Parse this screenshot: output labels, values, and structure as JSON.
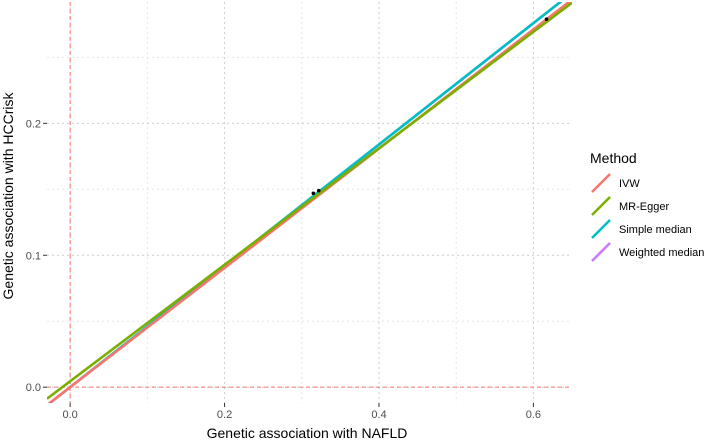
{
  "chart_data": {
    "type": "scatter",
    "xlabel": "Genetic association with NAFLD",
    "ylabel": "Genetic association with HCCrisk",
    "xlim": [
      -0.03,
      0.65
    ],
    "ylim": [
      -0.012,
      0.292
    ],
    "x_ticks": [
      "0.0",
      "0.2",
      "0.4",
      "0.6"
    ],
    "x_tick_values": [
      0.0,
      0.2,
      0.4,
      0.6
    ],
    "y_ticks": [
      "0.0",
      "0.1",
      "0.2"
    ],
    "y_tick_values": [
      0.0,
      0.1,
      0.2
    ],
    "grid": true,
    "zero_reference_lines": true,
    "legend": {
      "title": "Method",
      "position": "right",
      "entries": [
        "IVW",
        "MR-Egger",
        "Simple median",
        "Weighted median"
      ]
    },
    "points": [
      {
        "x": 0.315,
        "y": 0.147
      },
      {
        "x": 0.322,
        "y": 0.149
      },
      {
        "x": 0.617,
        "y": 0.279
      }
    ],
    "series": [
      {
        "name": "IVW",
        "color": "#F8766D",
        "intercept": 0.0,
        "slope": 0.452
      },
      {
        "name": "MR-Egger",
        "color": "#7CAE00",
        "intercept": 0.0045,
        "slope": 0.4415
      },
      {
        "name": "Simple median",
        "color": "#00BFC4",
        "intercept": 0.0,
        "slope": 0.46
      },
      {
        "name": "Weighted median",
        "color": "#C77CFF",
        "intercept": 0.0,
        "slope": 0.4598
      }
    ]
  }
}
